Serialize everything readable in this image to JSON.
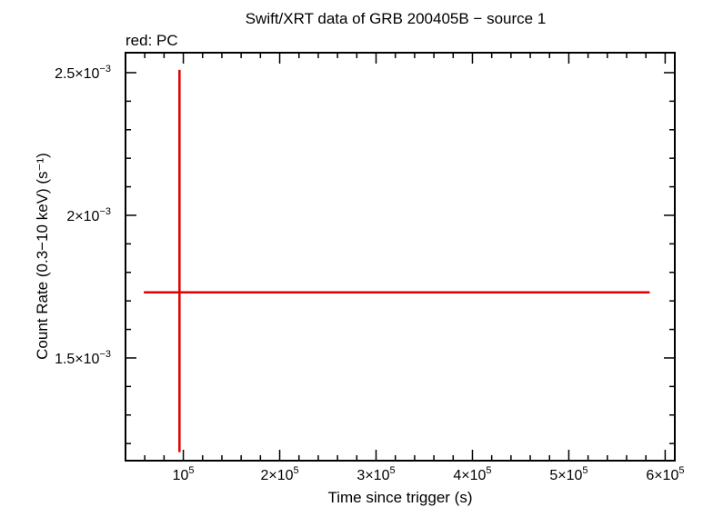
{
  "chart_data": {
    "type": "scatter",
    "title": "Swift/XRT data of GRB 200405B − source 1",
    "subtitle": "red: PC",
    "xlabel": "Time since trigger (s)",
    "ylabel": "Count Rate (0.3−10 keV) (s⁻¹)",
    "xlim": [
      40000,
      610000
    ],
    "ylim": [
      0.00114,
      0.00257
    ],
    "x_ticks": [
      {
        "value": 100000,
        "mant": "",
        "exp": "5"
      },
      {
        "value": 200000,
        "mant": "2×",
        "exp": "5"
      },
      {
        "value": 300000,
        "mant": "3×",
        "exp": "5"
      },
      {
        "value": 400000,
        "mant": "4×",
        "exp": "5"
      },
      {
        "value": 500000,
        "mant": "5×",
        "exp": "5"
      },
      {
        "value": 600000,
        "mant": "6×",
        "exp": "5"
      }
    ],
    "y_ticks": [
      {
        "value": 0.0025,
        "mant": "2.5×",
        "exp": "−3"
      },
      {
        "value": 0.002,
        "mant": "2×",
        "exp": "−3"
      },
      {
        "value": 0.0015,
        "mant": "1.5×",
        "exp": "−3"
      }
    ],
    "series": [
      {
        "color": "#e00000",
        "points": [
          {
            "x": 96000,
            "y": 0.00173,
            "xerr_low": 59000,
            "xerr_high": 584000,
            "yerr_low": 0.00117,
            "yerr_high": 0.00251
          }
        ]
      }
    ]
  }
}
